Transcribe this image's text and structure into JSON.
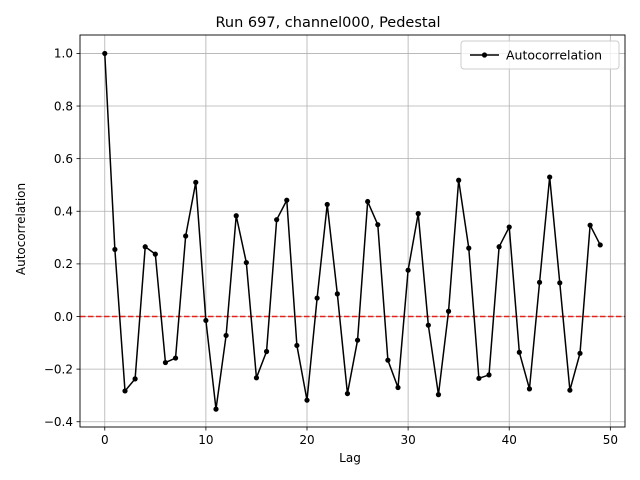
{
  "chart_data": {
    "type": "line",
    "title": "Run 697, channel000, Pedestal",
    "xlabel": "Lag",
    "ylabel": "Autocorrelation",
    "xlim": [
      -2.45,
      51.45
    ],
    "ylim": [
      -0.42,
      1.07
    ],
    "xticks": [
      0,
      10,
      20,
      30,
      40,
      50
    ],
    "yticks": [
      -0.4,
      -0.2,
      0.0,
      0.2,
      0.4,
      0.6,
      0.8,
      1.0
    ],
    "xtick_labels": [
      "0",
      "10",
      "20",
      "30",
      "40",
      "50"
    ],
    "ytick_labels": [
      "−0.4",
      "−0.2",
      "0.0",
      "0.2",
      "0.4",
      "0.6",
      "0.8",
      "1.0"
    ],
    "grid": true,
    "legend_position": "top-right",
    "series": [
      {
        "name": "Autocorrelation",
        "color": "#000000",
        "marker": "circle",
        "x": [
          0,
          1,
          2,
          3,
          4,
          5,
          6,
          7,
          8,
          9,
          10,
          11,
          12,
          13,
          14,
          15,
          16,
          17,
          18,
          19,
          20,
          21,
          22,
          23,
          24,
          25,
          26,
          27,
          28,
          29,
          30,
          31,
          32,
          33,
          34,
          35,
          36,
          37,
          38,
          39,
          40,
          41,
          42,
          43,
          44,
          45,
          46,
          47,
          48,
          49
        ],
        "y": [
          1.0,
          0.255,
          -0.283,
          -0.237,
          0.265,
          0.237,
          -0.175,
          -0.158,
          0.306,
          0.51,
          -0.015,
          -0.352,
          -0.072,
          0.383,
          0.205,
          -0.233,
          -0.133,
          0.368,
          0.442,
          -0.11,
          -0.318,
          0.07,
          0.426,
          0.086,
          -0.293,
          -0.09,
          0.437,
          0.349,
          -0.166,
          -0.27,
          0.176,
          0.391,
          -0.033,
          -0.297,
          0.02,
          0.518,
          0.26,
          -0.235,
          -0.222,
          0.265,
          0.34,
          -0.136,
          -0.275,
          0.13,
          0.53,
          0.128,
          -0.28,
          -0.14,
          0.347,
          0.272
        ]
      }
    ],
    "reference_line": {
      "y": 0.0,
      "color": "#e8221b",
      "style": "dashed"
    }
  }
}
